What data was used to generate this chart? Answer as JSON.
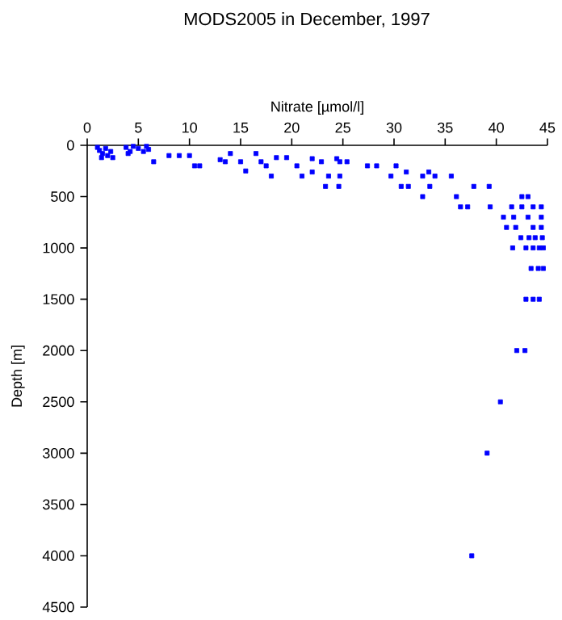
{
  "chart_data": {
    "type": "scatter",
    "title": "MODS2005 in December, 1997",
    "xlabel": "Nitrate [µmol/l]",
    "ylabel": "Depth [m]",
    "xlim": [
      0,
      45
    ],
    "xticks": [
      0,
      5,
      10,
      15,
      20,
      25,
      30,
      35,
      40,
      45
    ],
    "ylim": [
      4500,
      0
    ],
    "yticks": [
      0,
      500,
      1000,
      1500,
      2000,
      2500,
      3000,
      3500,
      4000,
      4500
    ],
    "marker": "square",
    "series": [
      {
        "color": "#0000ff",
        "x": [
          1.0,
          1.2,
          1.5,
          1.8,
          2.0,
          2.3,
          1.4,
          2.5,
          3.8,
          4.2,
          4.5,
          5.0,
          5.5,
          5.8,
          4.0,
          6.0,
          6.5,
          8.0,
          9.0,
          10.0,
          10.5,
          11.0,
          13.0,
          13.5,
          14.0,
          15.0,
          15.5,
          16.5,
          17.0,
          17.5,
          18.0,
          18.5,
          19.5,
          20.5,
          21.0,
          22.0,
          22.0,
          22.9,
          24.4,
          24.7,
          25.4,
          23.6,
          24.7,
          23.3,
          24.6,
          27.4,
          28.3,
          30.2,
          29.7,
          31.2,
          30.7,
          31.4,
          32.8,
          33.4,
          34.0,
          32.8,
          33.5,
          35.6,
          36.1,
          36.5,
          37.2,
          37.8,
          39.3,
          39.4,
          40.7,
          41.5,
          41.7,
          41.0,
          41.9,
          41.6,
          42.5,
          43.1,
          42.5,
          43.6,
          44.4,
          43.1,
          44.4,
          42.4,
          43.2,
          43.8,
          44.5,
          43.6,
          44.4,
          42.9,
          43.6,
          44.2,
          44.6,
          43.4,
          44.1,
          44.6,
          42.9,
          43.6,
          44.2,
          42.0,
          42.8,
          40.4,
          39.1,
          37.6
        ],
        "values": [
          20,
          50,
          80,
          30,
          100,
          60,
          120,
          120,
          20,
          60,
          10,
          30,
          60,
          10,
          80,
          40,
          160,
          100,
          100,
          100,
          200,
          200,
          140,
          160,
          80,
          160,
          250,
          80,
          160,
          200,
          300,
          120,
          120,
          200,
          300,
          130,
          260,
          160,
          130,
          160,
          160,
          300,
          300,
          400,
          400,
          200,
          200,
          200,
          300,
          260,
          400,
          400,
          300,
          260,
          300,
          500,
          400,
          300,
          500,
          600,
          600,
          400,
          400,
          600,
          700,
          600,
          700,
          800,
          800,
          1000,
          500,
          500,
          600,
          600,
          600,
          700,
          700,
          900,
          900,
          900,
          900,
          800,
          800,
          1000,
          1000,
          1000,
          1000,
          1200,
          1200,
          1200,
          1500,
          1500,
          1500,
          2000,
          2000,
          2500,
          3000,
          4000
        ]
      }
    ]
  }
}
